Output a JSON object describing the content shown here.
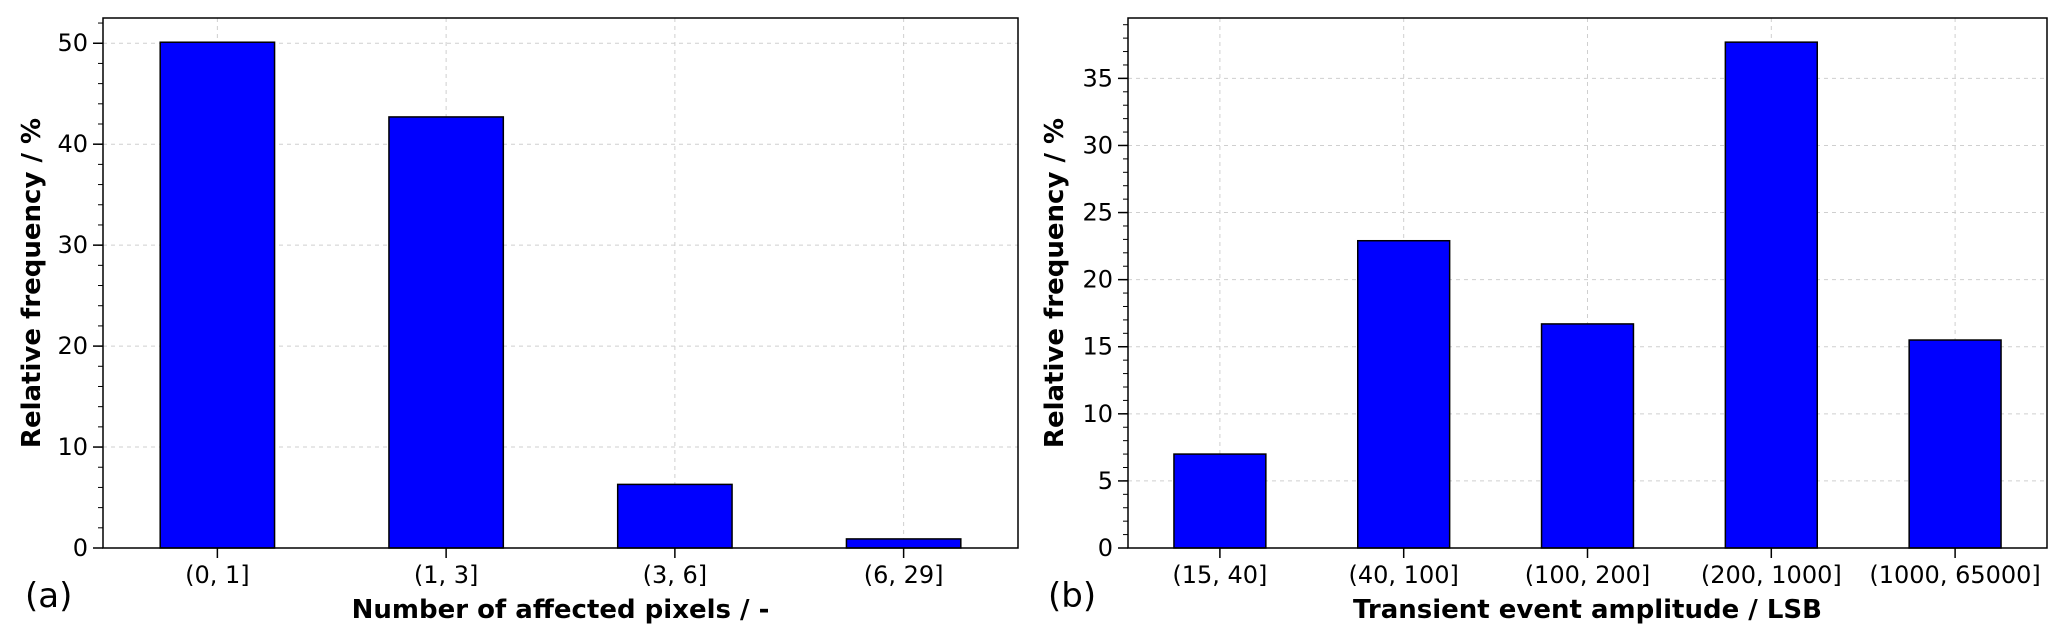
{
  "chart_data": [
    {
      "type": "bar",
      "panel_label": "(a)",
      "categories": [
        "(0, 1]",
        "(1, 3]",
        "(3, 6]",
        "(6, 29]"
      ],
      "values": [
        50.1,
        42.7,
        6.3,
        0.9
      ],
      "xlabel": "Number of affected pixels / -",
      "ylabel": "Relative frequency / %",
      "ylim": [
        0,
        52.5
      ],
      "yticks": [
        0,
        10,
        20,
        30,
        40,
        50
      ],
      "grid": true,
      "bar_color": "#0000ff"
    },
    {
      "type": "bar",
      "panel_label": "(b)",
      "categories": [
        "(15, 40]",
        "(40, 100]",
        "(100, 200]",
        "(200, 1000]",
        "(1000, 65000]"
      ],
      "values": [
        7.0,
        22.9,
        16.7,
        37.7,
        15.5
      ],
      "xlabel": "Transient event amplitude / LSB",
      "ylabel": "Relative frequency / %",
      "ylim": [
        0,
        39.5
      ],
      "yticks": [
        0,
        5,
        10,
        15,
        20,
        25,
        30,
        35
      ],
      "grid": true,
      "bar_color": "#0000ff"
    }
  ]
}
